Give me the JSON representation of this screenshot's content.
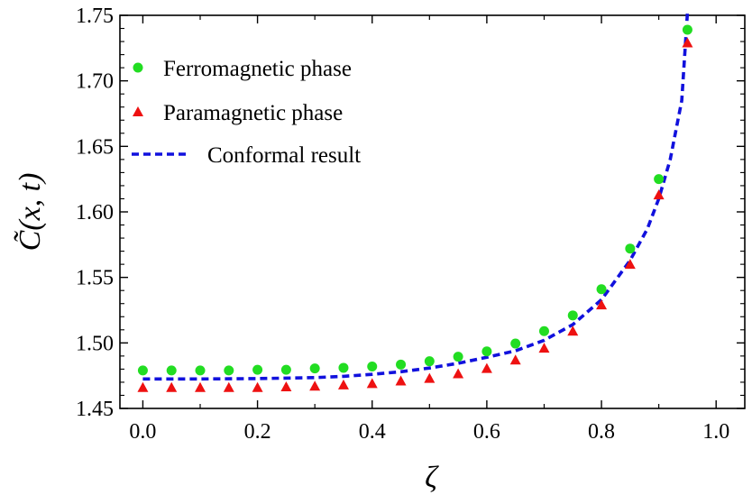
{
  "chart_data": {
    "type": "scatter",
    "title": "",
    "xlabel": "ζ",
    "ylabel": "C̃(x, t)",
    "xlim": [
      -0.04,
      1.05
    ],
    "ylim": [
      1.45,
      1.75
    ],
    "xticks": [
      0.0,
      0.2,
      0.4,
      0.6,
      0.8,
      1.0
    ],
    "xtick_labels": [
      "0.0",
      "0.2",
      "0.4",
      "0.6",
      "0.8",
      "1.0"
    ],
    "yticks": [
      1.45,
      1.5,
      1.55,
      1.6,
      1.65,
      1.7,
      1.75
    ],
    "ytick_labels": [
      "1.45",
      "1.50",
      "1.55",
      "1.60",
      "1.65",
      "1.70",
      "1.75"
    ],
    "legend_position": "top-left",
    "series": [
      {
        "name": "Ferromagnetic phase",
        "marker": "circle",
        "color": "#22dd22",
        "x": [
          0.0,
          0.05,
          0.1,
          0.15,
          0.2,
          0.25,
          0.3,
          0.35,
          0.4,
          0.45,
          0.5,
          0.55,
          0.6,
          0.65,
          0.7,
          0.75,
          0.8,
          0.85,
          0.9,
          0.95
        ],
        "values": [
          1.479,
          1.479,
          1.479,
          1.479,
          1.4795,
          1.4795,
          1.4805,
          1.481,
          1.482,
          1.4835,
          1.486,
          1.4895,
          1.4935,
          1.4995,
          1.509,
          1.521,
          1.541,
          1.572,
          1.625,
          1.739
        ]
      },
      {
        "name": "Paramagnetic phase",
        "marker": "triangle",
        "color": "#ee1111",
        "x": [
          0.0,
          0.05,
          0.1,
          0.15,
          0.2,
          0.25,
          0.3,
          0.35,
          0.4,
          0.45,
          0.5,
          0.55,
          0.6,
          0.65,
          0.7,
          0.75,
          0.8,
          0.85,
          0.9,
          0.95
        ],
        "values": [
          1.466,
          1.466,
          1.466,
          1.466,
          1.466,
          1.4665,
          1.467,
          1.468,
          1.469,
          1.471,
          1.473,
          1.4765,
          1.4805,
          1.487,
          1.496,
          1.509,
          1.529,
          1.56,
          1.613,
          1.729
        ]
      },
      {
        "name": "Conformal result",
        "style": "dashed-line",
        "color": "#1111dd",
        "x": [
          0.0,
          0.1,
          0.2,
          0.3,
          0.35,
          0.4,
          0.45,
          0.5,
          0.55,
          0.6,
          0.65,
          0.7,
          0.75,
          0.8,
          0.85,
          0.88,
          0.9,
          0.92,
          0.94,
          0.95
        ],
        "values": [
          1.4725,
          1.4725,
          1.4728,
          1.4735,
          1.4745,
          1.476,
          1.478,
          1.4808,
          1.4845,
          1.489,
          1.494,
          1.502,
          1.514,
          1.533,
          1.563,
          1.587,
          1.61,
          1.64,
          1.685,
          1.752
        ]
      }
    ]
  }
}
